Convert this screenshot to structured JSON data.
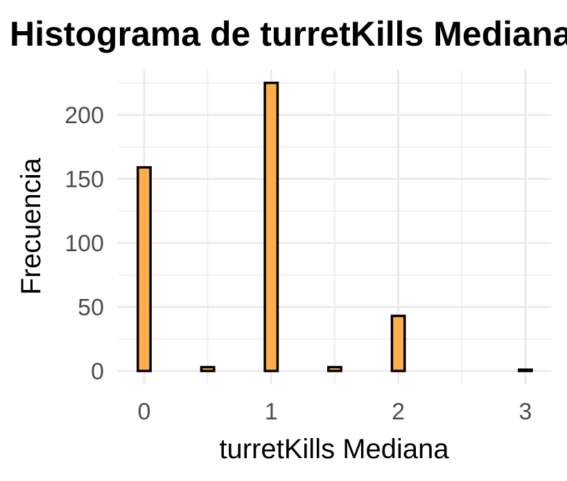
{
  "chart_data": {
    "type": "bar",
    "title": "Histograma de turretKills Mediana",
    "xlabel": "turretKills Mediana",
    "ylabel": "Frecuencia",
    "x_ticks": [
      "0",
      "1",
      "2",
      "3"
    ],
    "y_ticks": [
      "0",
      "50",
      "100",
      "150",
      "200"
    ],
    "xlim": [
      -0.2,
      3.2
    ],
    "ylim": [
      -10,
      234
    ],
    "bin_width": 0.1,
    "bins": [
      {
        "x": 0.0,
        "count": 159
      },
      {
        "x": 0.1,
        "count": 0
      },
      {
        "x": 0.2,
        "count": 0
      },
      {
        "x": 0.3,
        "count": 0
      },
      {
        "x": 0.4,
        "count": 0
      },
      {
        "x": 0.5,
        "count": 3
      },
      {
        "x": 0.6,
        "count": 0
      },
      {
        "x": 0.7,
        "count": 0
      },
      {
        "x": 0.8,
        "count": 0
      },
      {
        "x": 0.9,
        "count": 0
      },
      {
        "x": 1.0,
        "count": 225
      },
      {
        "x": 1.1,
        "count": 0
      },
      {
        "x": 1.2,
        "count": 0
      },
      {
        "x": 1.3,
        "count": 0
      },
      {
        "x": 1.4,
        "count": 0
      },
      {
        "x": 1.5,
        "count": 3
      },
      {
        "x": 1.6,
        "count": 0
      },
      {
        "x": 1.7,
        "count": 0
      },
      {
        "x": 1.8,
        "count": 0
      },
      {
        "x": 1.9,
        "count": 0
      },
      {
        "x": 2.0,
        "count": 43
      },
      {
        "x": 2.1,
        "count": 0
      },
      {
        "x": 2.2,
        "count": 0
      },
      {
        "x": 2.3,
        "count": 0
      },
      {
        "x": 2.4,
        "count": 0
      },
      {
        "x": 2.5,
        "count": 0
      },
      {
        "x": 2.6,
        "count": 0
      },
      {
        "x": 2.7,
        "count": 0
      },
      {
        "x": 2.8,
        "count": 0
      },
      {
        "x": 2.9,
        "count": 0
      },
      {
        "x": 3.0,
        "count": 1
      }
    ],
    "grid": true,
    "colors": {
      "bar_fill": "#ffae4c",
      "bar_stroke": "#000000",
      "grid": "#ebebeb"
    }
  }
}
